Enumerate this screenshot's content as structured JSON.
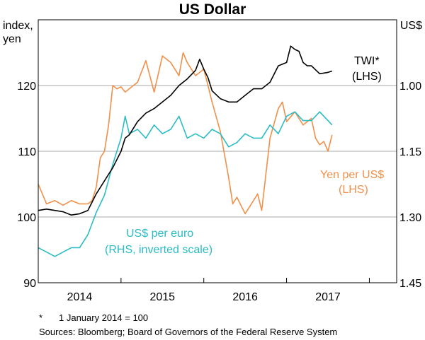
{
  "chart_data": {
    "type": "line",
    "title": "US Dollar",
    "left_axis": {
      "label_line1": "index,",
      "label_line2": "yen",
      "ylim": [
        90,
        130
      ],
      "ticks": [
        90,
        100,
        110,
        120
      ]
    },
    "right_axis": {
      "label": "US$",
      "ylim": [
        1.45,
        0.85
      ],
      "inverted": true,
      "ticks": [
        1.0,
        1.15,
        1.3,
        1.45
      ],
      "tick_labels": [
        "1.00",
        "1.15",
        "1.30",
        "1.45"
      ]
    },
    "x_axis": {
      "range": [
        2013.5,
        2017.83
      ],
      "year_labels": [
        "2014",
        "2015",
        "2016",
        "2017"
      ],
      "label_positions": [
        2014.0,
        2015.0,
        2016.0,
        2017.0
      ],
      "year_boundaries": [
        2014.5,
        2015.5,
        2016.5,
        2017.5
      ]
    },
    "series": [
      {
        "name": "TWI*",
        "label_line1": "TWI*",
        "label_line2": "(LHS)",
        "axis": "left",
        "color": "#000000",
        "x": [
          2013.5,
          2013.6,
          2013.7,
          2013.8,
          2013.9,
          2014.0,
          2014.1,
          2014.2,
          2014.3,
          2014.4,
          2014.5,
          2014.55,
          2014.6,
          2014.7,
          2014.8,
          2014.9,
          2015.0,
          2015.1,
          2015.2,
          2015.3,
          2015.4,
          2015.45,
          2015.5,
          2015.55,
          2015.6,
          2015.7,
          2015.8,
          2015.9,
          2016.0,
          2016.1,
          2016.2,
          2016.3,
          2016.4,
          2016.5,
          2016.55,
          2016.6,
          2016.65,
          2016.7,
          2016.75,
          2016.8,
          2016.9,
          2017.0,
          2017.05
        ],
        "values": [
          101.0,
          101.2,
          101.0,
          100.8,
          100.3,
          100.5,
          101.0,
          103.5,
          105.5,
          107.5,
          110.0,
          112.0,
          112.5,
          114.5,
          115.8,
          116.5,
          117.5,
          118.5,
          120.0,
          121.0,
          122.3,
          124.0,
          122.5,
          121.2,
          119.2,
          118.0,
          117.5,
          117.5,
          118.5,
          119.5,
          119.5,
          120.5,
          123.0,
          123.5,
          126.0,
          125.5,
          125.2,
          123.5,
          123.0,
          123.0,
          121.8,
          122.0,
          122.2
        ]
      },
      {
        "name": "Yen per US$",
        "label_line1": "Yen per US$",
        "label_line2": "(LHS)",
        "axis": "left",
        "color": "#f0904a",
        "x": [
          2013.5,
          2013.6,
          2013.7,
          2013.8,
          2013.9,
          2014.0,
          2014.1,
          2014.15,
          2014.2,
          2014.25,
          2014.3,
          2014.35,
          2014.4,
          2014.45,
          2014.5,
          2014.55,
          2014.6,
          2014.7,
          2014.8,
          2014.9,
          2015.0,
          2015.1,
          2015.2,
          2015.25,
          2015.3,
          2015.4,
          2015.5,
          2015.55,
          2015.6,
          2015.7,
          2015.8,
          2015.85,
          2015.9,
          2016.0,
          2016.1,
          2016.15,
          2016.2,
          2016.3,
          2016.4,
          2016.45,
          2016.5,
          2016.6,
          2016.7,
          2016.8,
          2016.85,
          2016.9,
          2016.95,
          2017.0,
          2017.05
        ],
        "values": [
          105.0,
          102.0,
          102.5,
          101.8,
          102.5,
          102.0,
          102.0,
          102.5,
          104.5,
          109.0,
          110.0,
          114.0,
          120.0,
          119.5,
          119.8,
          119.0,
          119.5,
          120.5,
          123.8,
          119.0,
          124.5,
          123.5,
          121.5,
          125.0,
          123.5,
          121.5,
          122.5,
          120.0,
          117.5,
          113.0,
          106.0,
          102.0,
          103.0,
          100.5,
          102.5,
          103.5,
          101.0,
          112.0,
          116.5,
          117.5,
          114.5,
          116.0,
          114.0,
          115.0,
          112.0,
          111.0,
          111.5,
          110.0,
          112.5
        ]
      },
      {
        "name": "US$ per euro",
        "label_line1": "US$ per euro",
        "label_line2": "(RHS, inverted scale)",
        "axis": "right",
        "color": "#2bbcc6",
        "x": [
          2013.5,
          2013.6,
          2013.7,
          2013.8,
          2013.9,
          2014.0,
          2014.1,
          2014.2,
          2014.3,
          2014.4,
          2014.45,
          2014.5,
          2014.55,
          2014.6,
          2014.7,
          2014.8,
          2014.9,
          2015.0,
          2015.1,
          2015.2,
          2015.3,
          2015.4,
          2015.5,
          2015.6,
          2015.7,
          2015.8,
          2015.9,
          2016.0,
          2016.1,
          2016.2,
          2016.3,
          2016.4,
          2016.5,
          2016.6,
          2016.7,
          2016.8,
          2016.9,
          2017.0,
          2017.05
        ],
        "values": [
          1.37,
          1.38,
          1.39,
          1.38,
          1.37,
          1.37,
          1.34,
          1.29,
          1.25,
          1.18,
          1.15,
          1.12,
          1.07,
          1.11,
          1.1,
          1.12,
          1.09,
          1.11,
          1.1,
          1.07,
          1.12,
          1.11,
          1.12,
          1.1,
          1.11,
          1.14,
          1.13,
          1.11,
          1.12,
          1.12,
          1.09,
          1.11,
          1.07,
          1.06,
          1.08,
          1.08,
          1.06,
          1.08,
          1.09
        ]
      }
    ]
  },
  "footnote": {
    "marker": "*",
    "text": "1 January 2014 = 100"
  },
  "sources": "Sources: Bloomberg; Board of Governors of the Federal Reserve System"
}
